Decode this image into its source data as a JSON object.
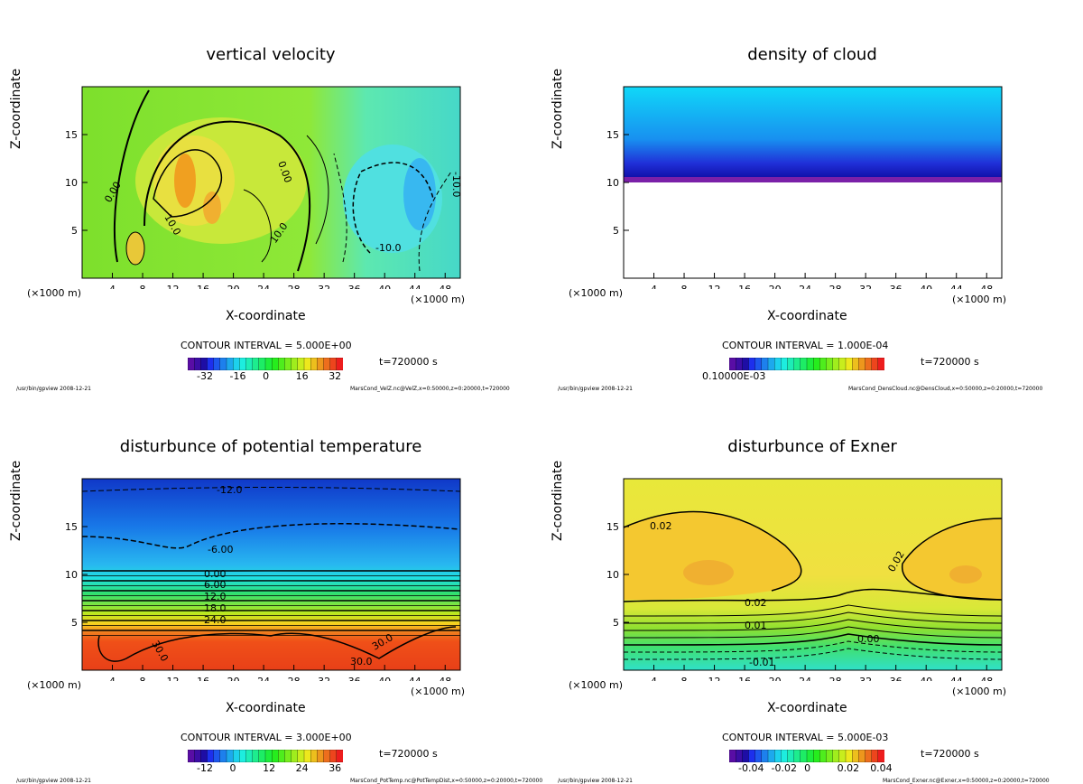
{
  "chart_data": [
    {
      "type": "contour",
      "title": "vertical velocity",
      "xlabel": "X-coordinate",
      "ylabel": "Z-coordinate",
      "x_unit": "(×1000 m)",
      "xlim": [
        0,
        50
      ],
      "ylim": [
        0,
        20
      ],
      "x_ticks": [
        4,
        8,
        12,
        16,
        20,
        24,
        28,
        32,
        36,
        40,
        44,
        48
      ],
      "y_ticks": [
        5,
        10,
        15
      ],
      "contour_interval": "CONTOUR INTERVAL = 5.000E+00",
      "time": "t=720000 s",
      "colorbar_ticks": [
        "-32",
        "-16",
        "0",
        "16",
        "32"
      ],
      "contour_labels": [
        "0.00",
        "0.00",
        "10.0",
        "10.0",
        "-10.0",
        "-10.0"
      ],
      "footer_left": "/usr/bin/gpview  2008-12-21",
      "footer_right": "MarsCond_VelZ.nc@VelZ,x=0:50000,z=0:20000,t=720000"
    },
    {
      "type": "contour",
      "title": "density of cloud",
      "xlabel": "X-coordinate",
      "ylabel": "Z-coordinate",
      "x_unit": "(×1000 m)",
      "xlim": [
        0,
        50
      ],
      "ylim": [
        0,
        20
      ],
      "x_ticks": [
        4,
        8,
        12,
        16,
        20,
        24,
        28,
        32,
        36,
        40,
        44,
        48
      ],
      "y_ticks": [
        5,
        10,
        15
      ],
      "contour_interval": "CONTOUR INTERVAL = 1.000E-04",
      "time": "t=720000 s",
      "colorbar_ticks": [
        "0.10000E-03"
      ],
      "cloud_base_z": 10,
      "footer_left": "/usr/bin/gpview  2008-12-21",
      "footer_right": "MarsCond_DensCloud.nc@DensCloud,x=0:50000,z=0:20000,t=720000"
    },
    {
      "type": "contour",
      "title": "disturbunce of potential temperature",
      "xlabel": "X-coordinate",
      "ylabel": "Z-coordinate",
      "x_unit": "(×1000 m)",
      "xlim": [
        0,
        50
      ],
      "ylim": [
        0,
        20
      ],
      "x_ticks": [
        4,
        8,
        12,
        16,
        20,
        24,
        28,
        32,
        36,
        40,
        44,
        48
      ],
      "y_ticks": [
        5,
        10,
        15
      ],
      "contour_interval": "CONTOUR INTERVAL = 3.000E+00",
      "time": "t=720000 s",
      "colorbar_ticks": [
        "-12",
        "0",
        "12",
        "24",
        "36"
      ],
      "contour_labels": [
        "-12.0",
        "-6.00",
        "0.00",
        "6.00",
        "12.0",
        "18.0",
        "24.0",
        "30.0",
        "30.0",
        "30.0"
      ],
      "footer_left": "/usr/bin/gpview  2008-12-21",
      "footer_right": "MarsCond_PotTemp.nc@PotTempDist,x=0:50000,z=0:20000,t=720000"
    },
    {
      "type": "contour",
      "title": "disturbunce of Exner",
      "xlabel": "X-coordinate",
      "ylabel": "Z-coordinate",
      "x_unit": "(×1000 m)",
      "xlim": [
        0,
        50
      ],
      "ylim": [
        0,
        20
      ],
      "x_ticks": [
        4,
        8,
        12,
        16,
        20,
        24,
        28,
        32,
        36,
        40,
        44,
        48
      ],
      "y_ticks": [
        5,
        10,
        15
      ],
      "contour_interval": "CONTOUR INTERVAL = 5.000E-03",
      "time": "t=720000 s",
      "colorbar_ticks": [
        "-0.04",
        "-0.02",
        "0",
        "0.02",
        "0.04"
      ],
      "contour_labels": [
        "0.02",
        "0.02",
        "0.02",
        "0.01",
        "0.00",
        "-0.01"
      ],
      "footer_left": "/usr/bin/gpview  2008-12-21",
      "footer_right": "MarsCond_Exner.nc@Exner,x=0:50000,z=0:20000,t=720000"
    }
  ]
}
